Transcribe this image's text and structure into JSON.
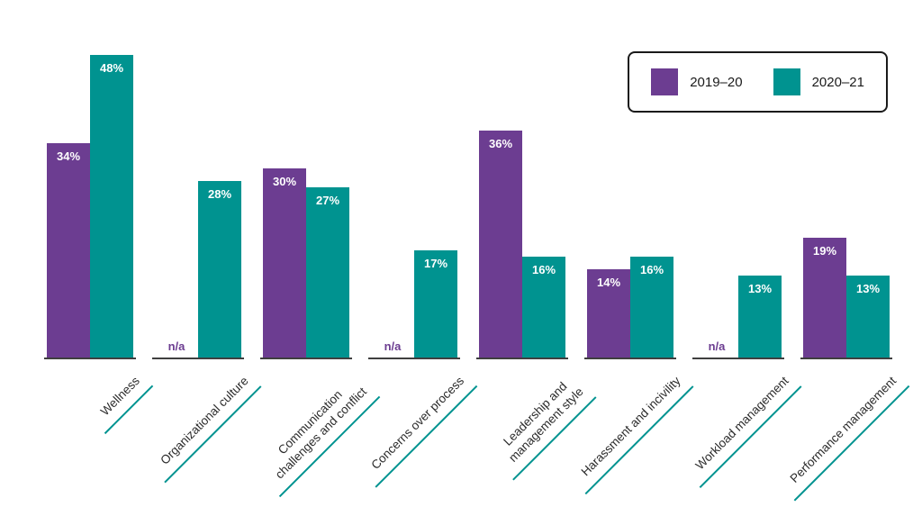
{
  "chart_data": {
    "type": "bar",
    "categories": [
      "Wellness",
      "Organizational culture",
      "Communication challenges and conflict",
      "Concerns over process",
      "Leadership and management style",
      "Harassment and incivility",
      "Workload management",
      "Performance management"
    ],
    "category_lines": [
      [
        "Wellness"
      ],
      [
        "Organizational culture"
      ],
      [
        "Communication",
        "challenges and conflict"
      ],
      [
        "Concerns over process"
      ],
      [
        "Leadership and",
        "management style"
      ],
      [
        "Harassment and incivility"
      ],
      [
        "Workload management"
      ],
      [
        "Performance management"
      ]
    ],
    "series": [
      {
        "name": "2019–20",
        "color": "#6c3d91",
        "values": [
          34,
          null,
          30,
          null,
          36,
          14,
          null,
          19
        ],
        "labels": [
          "34%",
          "n/a",
          "30%",
          "n/a",
          "36%",
          "14%",
          "n/a",
          "19%"
        ]
      },
      {
        "name": "2020–21",
        "color": "#009390",
        "values": [
          48,
          28,
          27,
          17,
          16,
          16,
          13,
          13
        ],
        "labels": [
          "48%",
          "28%",
          "27%",
          "17%",
          "16%",
          "16%",
          "13%",
          "13%"
        ]
      }
    ],
    "na_label": "n/a",
    "ylim": [
      0,
      48
    ],
    "grid": false,
    "legend_position": "top-right",
    "title": "",
    "xlabel": "",
    "ylabel": ""
  },
  "legend": {
    "accent_border_color": "#1a1a1a"
  }
}
